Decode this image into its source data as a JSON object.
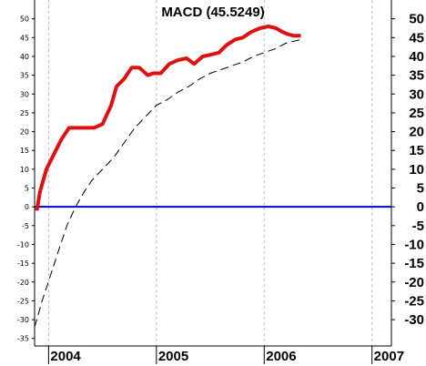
{
  "chart_data": {
    "type": "line",
    "title": "MACD (45.5249)",
    "x_ticks": [
      "2004",
      "2005",
      "2006",
      "2007"
    ],
    "y_ticks": [
      50,
      45,
      40,
      35,
      30,
      25,
      20,
      15,
      10,
      5,
      0,
      -5,
      -10,
      -15,
      -20,
      -25,
      -30,
      -35
    ],
    "right_y_ticks": [
      50,
      45,
      40,
      35,
      30,
      25,
      20,
      15,
      10,
      5,
      0,
      -5,
      -10,
      -15,
      -20,
      -25,
      -30
    ],
    "ylim": [
      -37,
      55
    ],
    "xlim": [
      2003.87,
      2007.18
    ],
    "grid": "vertical dashed at year ticks",
    "series": [
      {
        "style": "solid-thick",
        "color": "#e01010",
        "x": [
          2003.89,
          2003.92,
          2003.98,
          2004.05,
          2004.12,
          2004.19,
          2004.27,
          2004.35,
          2004.42,
          2004.5,
          2004.58,
          2004.63,
          2004.7,
          2004.77,
          2004.84,
          2004.92,
          2004.97,
          2005.04,
          2005.12,
          2005.2,
          2005.28,
          2005.35,
          2005.43,
          2005.51,
          2005.58,
          2005.65,
          2005.73,
          2005.8,
          2005.88,
          2005.96,
          2006.04,
          2006.11,
          2006.17,
          2006.21,
          2006.27,
          2006.34
        ],
        "y": [
          -1,
          4,
          10,
          14,
          18,
          21,
          21,
          21,
          21,
          22,
          27,
          32,
          34,
          37,
          37,
          35,
          35.5,
          35.5,
          38,
          39,
          39.5,
          38,
          40,
          40.5,
          41,
          43,
          44.5,
          45,
          46.5,
          47.5,
          48,
          47.5,
          46.5,
          46,
          45.5,
          45.5
        ],
        "values_note": ""
      },
      {
        "style": "dashed",
        "color": "#000000",
        "x": [
          2003.87,
          2003.94,
          2004.02,
          2004.1,
          2004.17,
          2004.25,
          2004.33,
          2004.4,
          2004.5,
          2004.6,
          2004.7,
          2004.8,
          2004.9,
          2005.0,
          2005.1,
          2005.2,
          2005.3,
          2005.4,
          2005.5,
          2005.6,
          2005.7,
          2005.8,
          2005.9,
          2006.0,
          2006.1,
          2006.2,
          2006.34
        ],
        "y": [
          -32,
          -25,
          -18,
          -11,
          -5,
          0,
          4,
          7,
          10,
          13,
          17,
          21,
          24,
          27,
          28.5,
          30.5,
          32,
          34,
          35.5,
          36.5,
          37.5,
          38.5,
          40,
          41,
          42,
          43.5,
          44.5
        ]
      }
    ],
    "zero_line": {
      "value": 0,
      "color": "#0000cc"
    }
  }
}
